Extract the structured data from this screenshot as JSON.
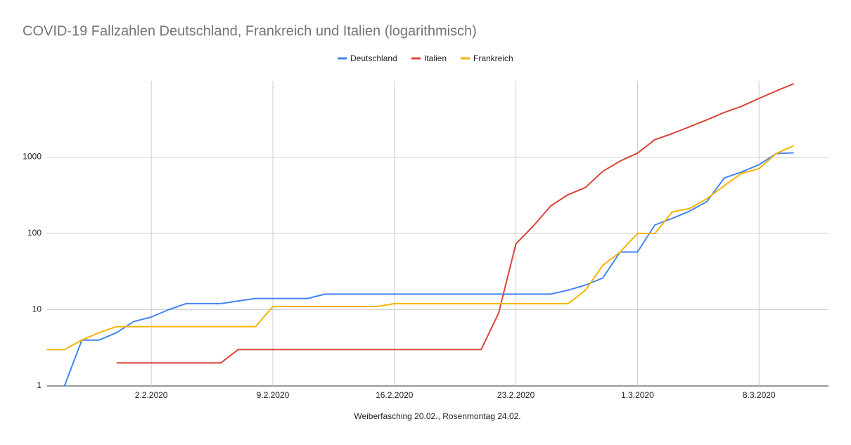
{
  "chart_data": {
    "type": "line",
    "title": "COVID-19 Fallzahlen Deutschland, Frankreich und Italien (logarithmisch)",
    "x_label": "Weiberfasching 20.02., Rosenmontag 24.02.",
    "x": [
      "2020-01-27",
      "2020-01-28",
      "2020-01-29",
      "2020-01-30",
      "2020-01-31",
      "2020-02-01",
      "2020-02-02",
      "2020-02-03",
      "2020-02-04",
      "2020-02-05",
      "2020-02-06",
      "2020-02-07",
      "2020-02-08",
      "2020-02-09",
      "2020-02-10",
      "2020-02-11",
      "2020-02-12",
      "2020-02-13",
      "2020-02-14",
      "2020-02-15",
      "2020-02-16",
      "2020-02-17",
      "2020-02-18",
      "2020-02-19",
      "2020-02-20",
      "2020-02-21",
      "2020-02-22",
      "2020-02-23",
      "2020-02-24",
      "2020-02-25",
      "2020-02-26",
      "2020-02-27",
      "2020-02-28",
      "2020-02-29",
      "2020-03-01",
      "2020-03-02",
      "2020-03-03",
      "2020-03-04",
      "2020-03-05",
      "2020-03-06",
      "2020-03-07",
      "2020-03-08",
      "2020-03-09",
      "2020-03-10"
    ],
    "series": [
      {
        "name": "Deutschland",
        "color": "#4285f4",
        "values": [
          null,
          1,
          4,
          4,
          5,
          7,
          8,
          10,
          12,
          12,
          12,
          13,
          14,
          14,
          14,
          14,
          16,
          16,
          16,
          16,
          16,
          16,
          16,
          16,
          16,
          16,
          16,
          16,
          16,
          16,
          18,
          21,
          26,
          57,
          57,
          129,
          157,
          196,
          262,
          534,
          639,
          795,
          1112,
          1139
        ]
      },
      {
        "name": "Italien",
        "color": "#db4437",
        "values": [
          null,
          null,
          null,
          null,
          2,
          2,
          2,
          2,
          2,
          2,
          2,
          3,
          3,
          3,
          3,
          3,
          3,
          3,
          3,
          3,
          3,
          3,
          3,
          3,
          3,
          3,
          9,
          73,
          125,
          229,
          322,
          400,
          650,
          888,
          1128,
          1694,
          2036,
          2502,
          3089,
          3858,
          4636,
          5883,
          7375,
          9172
        ]
      },
      {
        "name": "Frankreich",
        "color": "#f4b400",
        "values": [
          3,
          3,
          4,
          5,
          6,
          6,
          6,
          6,
          6,
          6,
          6,
          6,
          6,
          11,
          11,
          11,
          11,
          11,
          11,
          11,
          12,
          12,
          12,
          12,
          12,
          12,
          12,
          12,
          12,
          12,
          12,
          18,
          38,
          57,
          100,
          100,
          191,
          212,
          285,
          423,
          613,
          706,
          1116,
          1412
        ]
      }
    ],
    "xlim": [
      "2020-01-27",
      "2020-03-12"
    ],
    "xticks": [
      {
        "value": "2020-02-02",
        "label": "2.2.2020"
      },
      {
        "value": "2020-02-09",
        "label": "9.2.2020"
      },
      {
        "value": "2020-02-16",
        "label": "16.2.2020"
      },
      {
        "value": "2020-02-23",
        "label": "23.2.2020"
      },
      {
        "value": "2020-03-01",
        "label": "1.3.2020"
      },
      {
        "value": "2020-03-08",
        "label": "8.3.2020"
      }
    ],
    "ylim": [
      1,
      10000
    ],
    "yticks": [
      1,
      10,
      100,
      1000
    ],
    "log_y": true,
    "grid": true,
    "legend": "top"
  }
}
